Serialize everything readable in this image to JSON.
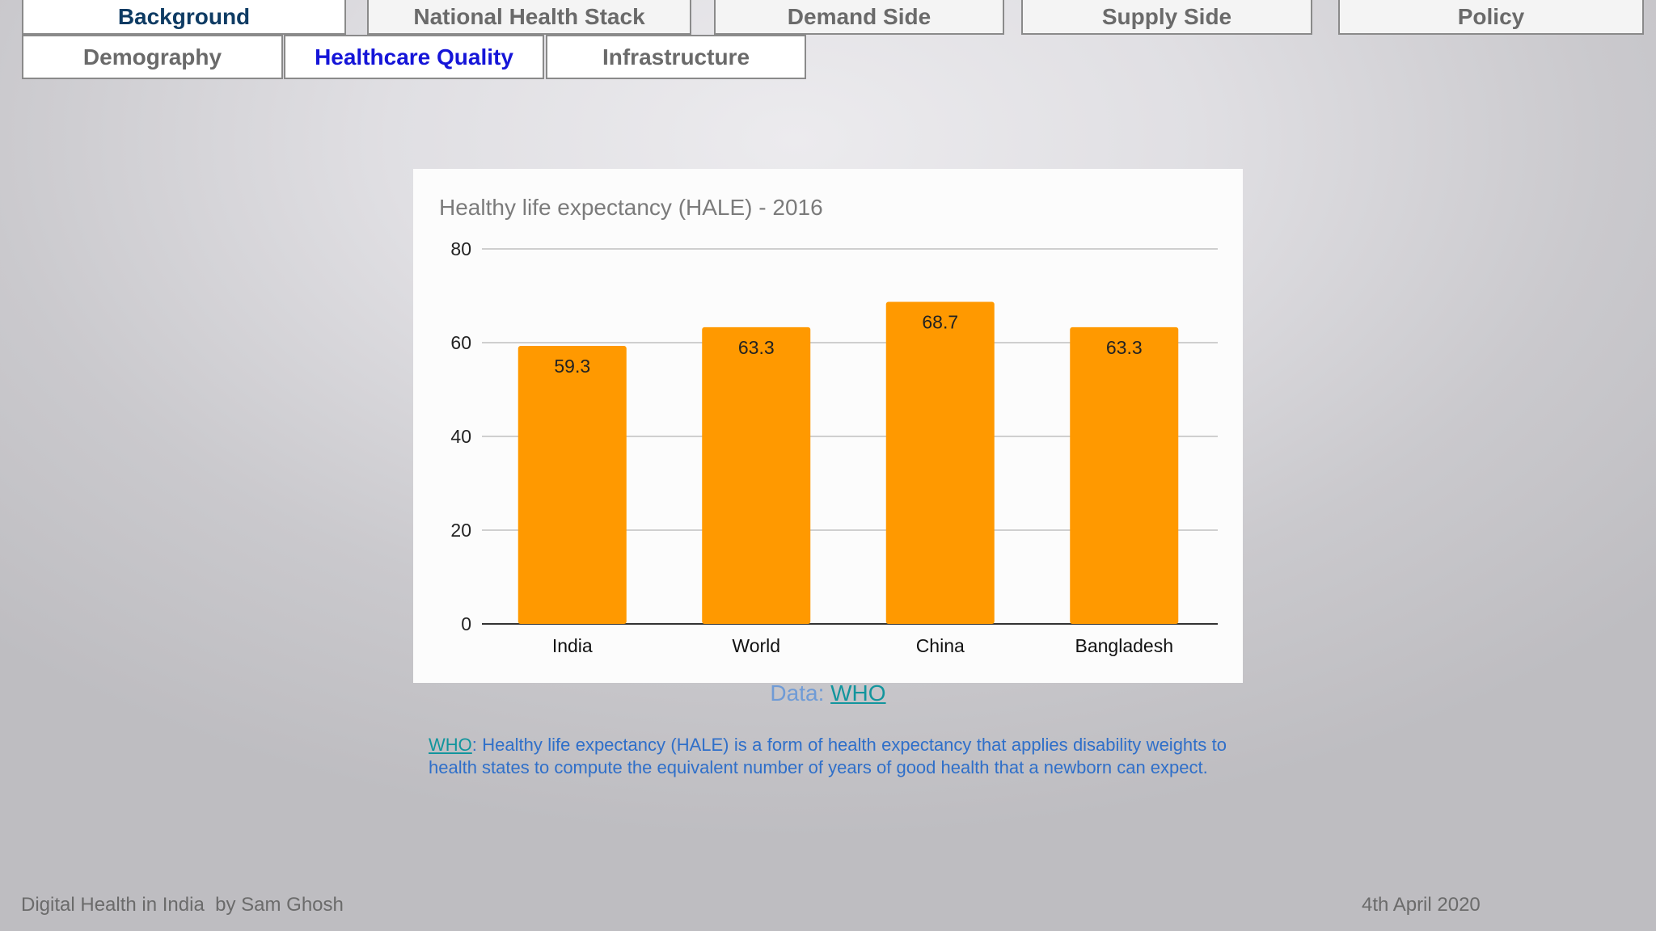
{
  "nav": {
    "row1": [
      {
        "label": "Background",
        "state": "active"
      },
      {
        "label": "National Health Stack"
      },
      {
        "label": "Demand Side"
      },
      {
        "label": "Supply Side"
      },
      {
        "label": "Policy"
      }
    ],
    "row2": [
      {
        "label": "Demography"
      },
      {
        "label": "Healthcare Quality",
        "state": "current"
      },
      {
        "label": "Infrastructure"
      }
    ]
  },
  "chart_data": {
    "type": "bar",
    "title": "Healthy life expectancy (HALE) - 2016",
    "categories": [
      "India",
      "World",
      "China",
      "Bangladesh"
    ],
    "values": [
      59.3,
      63.3,
      68.7,
      63.3
    ],
    "data_labels": [
      "59.3",
      "63.3",
      "68.7",
      "63.3"
    ],
    "ylim": [
      0,
      80
    ],
    "yticks": [
      "0",
      "20",
      "40",
      "60",
      "80"
    ],
    "grid": true,
    "bar_color": "#ff9900"
  },
  "source": {
    "prefix": "Data: ",
    "link": "WHO"
  },
  "definition": {
    "link": "WHO",
    "text": ": Healthy life expectancy (HALE) is a form of health expectancy that applies disability weights to health states to compute the equivalent number of years of good health that a newborn can expect."
  },
  "footer": {
    "left": "Digital Health in India  by Sam Ghosh",
    "right": "4th April 2020"
  },
  "colors": {
    "tab_active_background": "#0e3b63",
    "tab_current": "#1515d8",
    "link": "#12959d",
    "body_text": "#2f6fc9"
  }
}
